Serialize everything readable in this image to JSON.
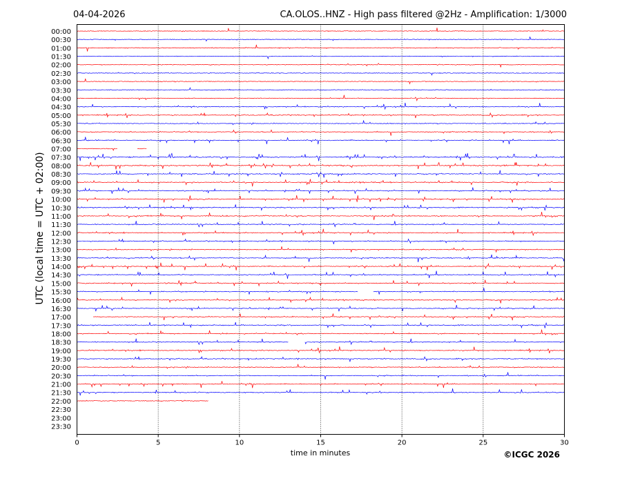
{
  "header": {
    "date": "04-04-2026",
    "title": "CA.OLOS..HNZ - High pass filtered @2Hz - Amplification: 1/3000"
  },
  "footer": {
    "copyright": "©ICGC 2026"
  },
  "colors": {
    "red": "#ff0000",
    "blue": "#0000ff",
    "grid": "#000000"
  },
  "chart_data": {
    "type": "line",
    "title": "CA.OLOS..HNZ - High pass filtered @2Hz - Amplification: 1/3000",
    "xlabel": "time in minutes",
    "ylabel": "UTC (local time = UTC + 02:00)",
    "xlim": [
      0,
      30
    ],
    "x_ticks": [
      0,
      5,
      10,
      15,
      20,
      25,
      30
    ],
    "x_tick_labels": [
      "0",
      "5",
      "10",
      "15",
      "20",
      "25",
      "30"
    ],
    "vertical_gridlines_at": [
      5,
      10,
      15,
      20,
      25
    ],
    "grid": "dotted vertical lines",
    "row_labels": [
      "00:00",
      "00:30",
      "01:00",
      "01:30",
      "02:00",
      "02:30",
      "03:00",
      "03:30",
      "04:00",
      "04:30",
      "05:00",
      "05:30",
      "06:00",
      "06:30",
      "07:00",
      "07:30",
      "08:00",
      "08:30",
      "09:00",
      "09:30",
      "10:00",
      "10:30",
      "11:00",
      "11:30",
      "12:00",
      "12:30",
      "13:00",
      "13:30",
      "14:00",
      "14:30",
      "15:00",
      "15:30",
      "16:00",
      "16:30",
      "17:00",
      "17:30",
      "18:00",
      "18:30",
      "19:00",
      "19:30",
      "20:00",
      "20:30",
      "21:00",
      "21:30",
      "22:00",
      "22:30",
      "23:00",
      "23:30"
    ],
    "row_colors": [
      "red",
      "blue",
      "red",
      "blue",
      "red",
      "blue",
      "red",
      "blue",
      "red",
      "blue",
      "red",
      "blue",
      "red",
      "blue",
      "red",
      "blue",
      "red",
      "blue",
      "red",
      "blue",
      "red",
      "blue",
      "red",
      "blue",
      "red",
      "blue",
      "red",
      "blue",
      "red",
      "blue",
      "red",
      "blue",
      "red",
      "blue",
      "red",
      "blue",
      "red",
      "blue",
      "red",
      "blue",
      "red",
      "blue",
      "red",
      "blue",
      "red",
      "blue",
      "red",
      "blue"
    ],
    "row_activity": [
      0.05,
      0.08,
      0.15,
      0.05,
      0.05,
      0.05,
      0.1,
      0.05,
      0.15,
      0.4,
      0.45,
      0.3,
      0.35,
      0.3,
      0.2,
      0.9,
      0.9,
      0.6,
      0.7,
      0.6,
      0.75,
      0.7,
      0.6,
      0.5,
      0.5,
      0.45,
      0.45,
      0.5,
      0.5,
      0.45,
      0.5,
      0.4,
      0.45,
      0.45,
      0.45,
      0.5,
      0.45,
      0.45,
      0.45,
      0.45,
      0.35,
      0.25,
      0.35,
      0.3,
      0.1,
      0,
      0,
      0
    ],
    "segments": [
      {
        "row": "07:00",
        "gaps": [
          [
            2.5,
            3.7
          ],
          [
            4.3,
            30
          ]
        ],
        "partial": true
      },
      {
        "row": "15:30",
        "gaps": [
          [
            17.3,
            18.2
          ]
        ]
      },
      {
        "row": "17:00",
        "gaps": [
          [
            0,
            1.0
          ]
        ]
      },
      {
        "row": "18:30",
        "gaps": [
          [
            13.0,
            14.0
          ]
        ]
      },
      {
        "row": "22:00",
        "data_ends_at_minute": 8.1
      },
      {
        "row": "22:30",
        "no_data": true
      },
      {
        "row": "23:00",
        "no_data": true
      },
      {
        "row": "23:30",
        "no_data": true
      }
    ]
  }
}
